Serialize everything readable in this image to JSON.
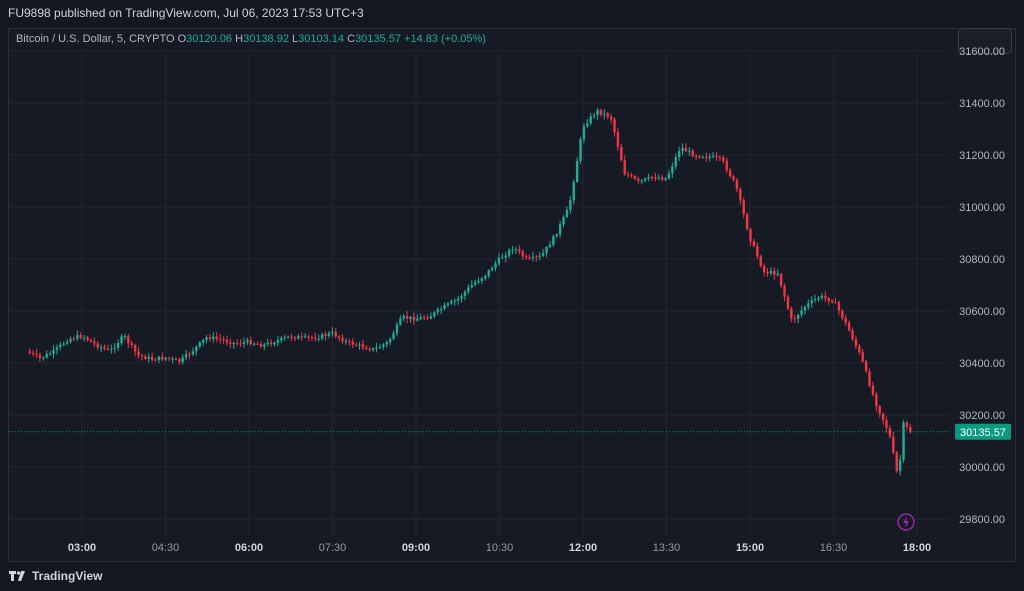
{
  "header": {
    "published": "FU9898 published on TradingView.com, Jul 06, 2023 17:53 UTC+3"
  },
  "legend": {
    "symbol": "Bitcoin / U.S. Dollar, 5, CRYPTO",
    "o_label": "O",
    "o_value": "30120.06",
    "h_label": "H",
    "h_value": "30138.92",
    "l_label": "L",
    "l_value": "30103.14",
    "c_label": "C",
    "c_value": "30135.57",
    "change": "+14.83 (+0.05%)"
  },
  "footer": {
    "brand": "TradingView"
  },
  "colors": {
    "up": "#22ab94",
    "down": "#f23645",
    "background": "#131722",
    "grid": "#232734",
    "text": "#d1d4dc",
    "price_badge": "#089981",
    "alert": "#9c27b0"
  },
  "icons": {
    "logo": "tradingview-logo-icon",
    "alert": "lightning-alert-icon"
  },
  "chart_data": {
    "type": "candlestick",
    "symbol": "Bitcoin / U.S. Dollar",
    "interval": "5",
    "xlabel": "",
    "ylabel": "",
    "y_ticks": [
      29800,
      30000,
      30200,
      30400,
      30600,
      30800,
      31000,
      31200,
      31400,
      31600
    ],
    "y_tick_labels": [
      "29800.00",
      "30000.00",
      "30200.00",
      "30400.00",
      "30600.00",
      "30800.00",
      "31000.00",
      "31200.00",
      "31400.00",
      "31600.00"
    ],
    "x_ticks": [
      "03:00",
      "04:30",
      "06:00",
      "07:30",
      "09:00",
      "10:30",
      "12:00",
      "13:30",
      "15:00",
      "16:30",
      "18:00"
    ],
    "x_tick_bold": [
      true,
      false,
      true,
      false,
      true,
      false,
      true,
      false,
      true,
      false,
      true
    ],
    "last_price": 30135.57,
    "last_price_label": "30135.57",
    "grid": true,
    "series": [
      {
        "t": "02:00",
        "c": 30445
      },
      {
        "t": "02:15",
        "c": 30418
      },
      {
        "t": "02:30",
        "c": 30445
      },
      {
        "t": "02:45",
        "c": 30492
      },
      {
        "t": "03:00",
        "c": 30505
      },
      {
        "t": "03:15",
        "c": 30470
      },
      {
        "t": "03:30",
        "c": 30445
      },
      {
        "t": "03:45",
        "c": 30505
      },
      {
        "t": "04:00",
        "c": 30430
      },
      {
        "t": "04:15",
        "c": 30415
      },
      {
        "t": "04:30",
        "c": 30420
      },
      {
        "t": "04:45",
        "c": 30405
      },
      {
        "t": "05:00",
        "c": 30450
      },
      {
        "t": "05:15",
        "c": 30500
      },
      {
        "t": "05:30",
        "c": 30490
      },
      {
        "t": "05:45",
        "c": 30475
      },
      {
        "t": "06:00",
        "c": 30482
      },
      {
        "t": "06:15",
        "c": 30468
      },
      {
        "t": "06:30",
        "c": 30485
      },
      {
        "t": "06:45",
        "c": 30502
      },
      {
        "t": "07:00",
        "c": 30495
      },
      {
        "t": "07:15",
        "c": 30500
      },
      {
        "t": "07:30",
        "c": 30515
      },
      {
        "t": "07:45",
        "c": 30480
      },
      {
        "t": "08:00",
        "c": 30465
      },
      {
        "t": "08:15",
        "c": 30452
      },
      {
        "t": "08:30",
        "c": 30480
      },
      {
        "t": "08:45",
        "c": 30575
      },
      {
        "t": "09:00",
        "c": 30570
      },
      {
        "t": "09:15",
        "c": 30580
      },
      {
        "t": "09:30",
        "c": 30615
      },
      {
        "t": "09:45",
        "c": 30645
      },
      {
        "t": "10:00",
        "c": 30700
      },
      {
        "t": "10:15",
        "c": 30740
      },
      {
        "t": "10:30",
        "c": 30800
      },
      {
        "t": "10:45",
        "c": 30845
      },
      {
        "t": "11:00",
        "c": 30795
      },
      {
        "t": "11:15",
        "c": 30810
      },
      {
        "t": "11:30",
        "c": 30890
      },
      {
        "t": "11:45",
        "c": 31000
      },
      {
        "t": "12:00",
        "c": 31310
      },
      {
        "t": "12:15",
        "c": 31370
      },
      {
        "t": "12:30",
        "c": 31345
      },
      {
        "t": "12:45",
        "c": 31130
      },
      {
        "t": "13:00",
        "c": 31095
      },
      {
        "t": "13:15",
        "c": 31115
      },
      {
        "t": "13:30",
        "c": 31110
      },
      {
        "t": "13:45",
        "c": 31230
      },
      {
        "t": "14:00",
        "c": 31200
      },
      {
        "t": "14:15",
        "c": 31195
      },
      {
        "t": "14:30",
        "c": 31180
      },
      {
        "t": "14:45",
        "c": 31080
      },
      {
        "t": "15:00",
        "c": 30880
      },
      {
        "t": "15:15",
        "c": 30750
      },
      {
        "t": "15:30",
        "c": 30745
      },
      {
        "t": "15:45",
        "c": 30560
      },
      {
        "t": "16:00",
        "c": 30620
      },
      {
        "t": "16:15",
        "c": 30655
      },
      {
        "t": "16:30",
        "c": 30640
      },
      {
        "t": "16:45",
        "c": 30540
      },
      {
        "t": "17:00",
        "c": 30420
      },
      {
        "t": "17:15",
        "c": 30250
      },
      {
        "t": "17:30",
        "c": 30130
      },
      {
        "t": "17:40",
        "c": 29950
      },
      {
        "t": "17:45",
        "c": 30165
      },
      {
        "t": "17:53",
        "c": 30136
      }
    ]
  }
}
